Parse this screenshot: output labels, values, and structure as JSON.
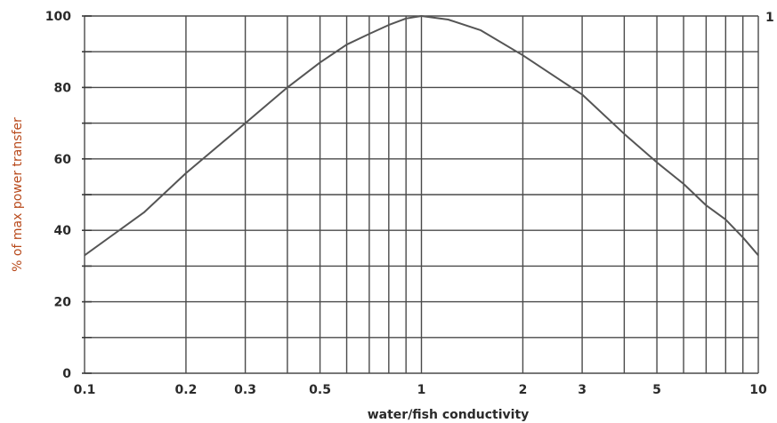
{
  "chart_data": {
    "type": "line",
    "title": "",
    "xlabel": "water/fish conductivity",
    "ylabel": "% of max power transfer",
    "xscale": "log",
    "xlim": [
      0.1,
      10
    ],
    "ylim": [
      0,
      100
    ],
    "x_ticks": [
      {
        "value": 0.1,
        "label": "0.1"
      },
      {
        "value": 0.2,
        "label": "0.2"
      },
      {
        "value": 0.3,
        "label": "0.3"
      },
      {
        "value": 0.5,
        "label": "0.5"
      },
      {
        "value": 1,
        "label": "1"
      },
      {
        "value": 2,
        "label": "2"
      },
      {
        "value": 3,
        "label": "3"
      },
      {
        "value": 5,
        "label": "5"
      },
      {
        "value": 10,
        "label": "10"
      }
    ],
    "y_ticks": [
      {
        "value": 0,
        "label": "0"
      },
      {
        "value": 20,
        "label": "20"
      },
      {
        "value": 40,
        "label": "40"
      },
      {
        "value": 60,
        "label": "60"
      },
      {
        "value": 80,
        "label": "80"
      },
      {
        "value": 100,
        "label": "100"
      }
    ],
    "right_edge_label": "1",
    "x_gridlines": [
      0.1,
      0.2,
      0.3,
      0.4,
      0.5,
      0.6,
      0.7,
      0.8,
      0.9,
      1,
      2,
      3,
      4,
      5,
      6,
      7,
      8,
      9,
      10
    ],
    "y_gridlines": [
      0,
      10,
      20,
      30,
      40,
      50,
      60,
      70,
      80,
      90,
      100
    ],
    "grid": true,
    "series": [
      {
        "color": "#555555",
        "x": [
          0.1,
          0.15,
          0.2,
          0.3,
          0.4,
          0.5,
          0.6,
          0.7,
          0.8,
          0.9,
          1,
          1.2,
          1.5,
          2,
          3,
          4,
          5,
          6,
          7,
          8,
          9,
          10
        ],
        "y": [
          33,
          45,
          56,
          70,
          80,
          87,
          92,
          95,
          97.5,
          99.3,
          100,
          99,
          96,
          89,
          78,
          67,
          59,
          53,
          47,
          43,
          38,
          33
        ]
      }
    ]
  }
}
